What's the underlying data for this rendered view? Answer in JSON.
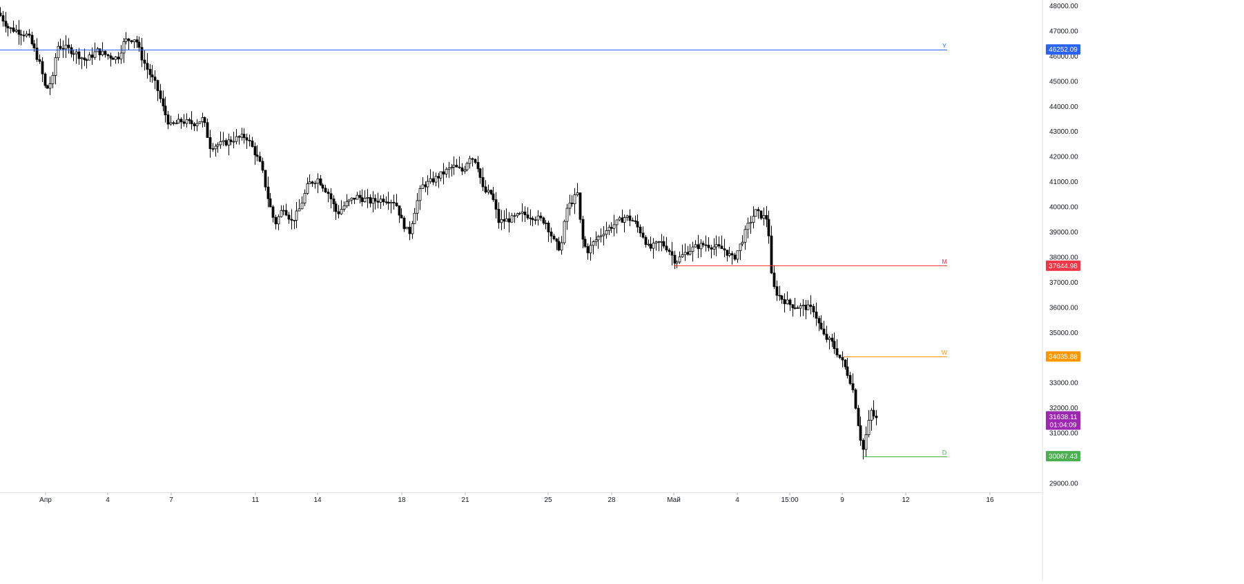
{
  "colors": {
    "background": "#ffffff",
    "candle": "#000000",
    "axis_line": "#e0e3eb",
    "axis_text": "#131722",
    "level_y": "#2962ff",
    "level_m": "#f23645",
    "level_w": "#ff9800",
    "level_d": "#4caf50",
    "last_price": "#9c27b0"
  },
  "chart_data": {
    "type": "candlestick",
    "title": "",
    "xlabel": "",
    "ylabel": "",
    "ylim": [
      28500,
      48200
    ],
    "price_ticks": [
      "29000.00",
      "30000.00",
      "31000.00",
      "32000.00",
      "33000.00",
      "34000.00",
      "35000.00",
      "36000.00",
      "37000.00",
      "38000.00",
      "39000.00",
      "40000.00",
      "41000.00",
      "42000.00",
      "43000.00",
      "44000.00",
      "45000.00",
      "46000.00",
      "47000.00",
      "48000.00"
    ],
    "time_ticks": [
      "Апр",
      "4",
      "7",
      "11",
      "14",
      "18",
      "21",
      "25",
      "28",
      "Май",
      "4",
      "15:00",
      "9",
      "12",
      "16"
    ],
    "levels": [
      {
        "label": "Y",
        "value": 46252.09,
        "value_text": "46252.09",
        "color": "#2962ff"
      },
      {
        "label": "M",
        "value": 37644.98,
        "value_text": "37644.98",
        "color": "#f23645"
      },
      {
        "label": "W",
        "value": 34035.88,
        "value_text": "34035.88",
        "color": "#ff9800"
      },
      {
        "label": "D",
        "value": 30067.43,
        "value_text": "30067.43",
        "color": "#4caf50"
      }
    ],
    "last_price": {
      "value": 31638.11,
      "value_text": "31638.11",
      "countdown": "01:04:09"
    },
    "close_path": [
      [
        0,
        47600
      ],
      [
        12,
        47100
      ],
      [
        24,
        47000
      ],
      [
        40,
        46800
      ],
      [
        50,
        46200
      ],
      [
        58,
        45600
      ],
      [
        66,
        44600
      ],
      [
        76,
        45100
      ],
      [
        82,
        46400
      ],
      [
        96,
        46300
      ],
      [
        110,
        46100
      ],
      [
        124,
        45800
      ],
      [
        140,
        46200
      ],
      [
        156,
        46000
      ],
      [
        170,
        45900
      ],
      [
        180,
        46600
      ],
      [
        196,
        46700
      ],
      [
        204,
        46000
      ],
      [
        214,
        45400
      ],
      [
        226,
        44800
      ],
      [
        236,
        43900
      ],
      [
        246,
        43200
      ],
      [
        262,
        43400
      ],
      [
        280,
        43300
      ],
      [
        294,
        43500
      ],
      [
        304,
        42400
      ],
      [
        322,
        42500
      ],
      [
        340,
        42700
      ],
      [
        356,
        42800
      ],
      [
        366,
        42300
      ],
      [
        378,
        41600
      ],
      [
        388,
        40300
      ],
      [
        398,
        39300
      ],
      [
        410,
        40000
      ],
      [
        422,
        39400
      ],
      [
        432,
        39800
      ],
      [
        446,
        40900
      ],
      [
        460,
        41100
      ],
      [
        476,
        40500
      ],
      [
        488,
        39700
      ],
      [
        500,
        40100
      ],
      [
        516,
        40400
      ],
      [
        536,
        40200
      ],
      [
        556,
        40300
      ],
      [
        572,
        40200
      ],
      [
        582,
        39400
      ],
      [
        592,
        38900
      ],
      [
        600,
        39800
      ],
      [
        610,
        40800
      ],
      [
        624,
        41000
      ],
      [
        640,
        41300
      ],
      [
        656,
        41600
      ],
      [
        670,
        41400
      ],
      [
        680,
        42000
      ],
      [
        690,
        41800
      ],
      [
        700,
        40600
      ],
      [
        712,
        40500
      ],
      [
        722,
        39400
      ],
      [
        740,
        39500
      ],
      [
        756,
        39700
      ],
      [
        772,
        39600
      ],
      [
        790,
        39400
      ],
      [
        802,
        38600
      ],
      [
        812,
        38300
      ],
      [
        820,
        39900
      ],
      [
        836,
        40500
      ],
      [
        842,
        38800
      ],
      [
        850,
        38200
      ],
      [
        860,
        38600
      ],
      [
        874,
        39000
      ],
      [
        890,
        39300
      ],
      [
        906,
        39600
      ],
      [
        918,
        39400
      ],
      [
        930,
        38900
      ],
      [
        940,
        38300
      ],
      [
        956,
        38600
      ],
      [
        968,
        38300
      ],
      [
        978,
        37800
      ],
      [
        994,
        38200
      ],
      [
        1008,
        38400
      ],
      [
        1020,
        38500
      ],
      [
        1034,
        38400
      ],
      [
        1048,
        38300
      ],
      [
        1062,
        37900
      ],
      [
        1074,
        38600
      ],
      [
        1084,
        39300
      ],
      [
        1094,
        39800
      ],
      [
        1104,
        39600
      ],
      [
        1112,
        39500
      ],
      [
        1118,
        36900
      ],
      [
        1126,
        36500
      ],
      [
        1134,
        36300
      ],
      [
        1144,
        36100
      ],
      [
        1156,
        36000
      ],
      [
        1166,
        36000
      ],
      [
        1178,
        35900
      ],
      [
        1186,
        35300
      ],
      [
        1194,
        34800
      ],
      [
        1204,
        34600
      ],
      [
        1212,
        34200
      ],
      [
        1222,
        33700
      ],
      [
        1230,
        33200
      ],
      [
        1236,
        32600
      ],
      [
        1244,
        31100
      ],
      [
        1250,
        30300
      ],
      [
        1256,
        31200
      ],
      [
        1262,
        31900
      ],
      [
        1268,
        31500
      ],
      [
        1272,
        31640
      ]
    ],
    "wick_seed": 7
  }
}
